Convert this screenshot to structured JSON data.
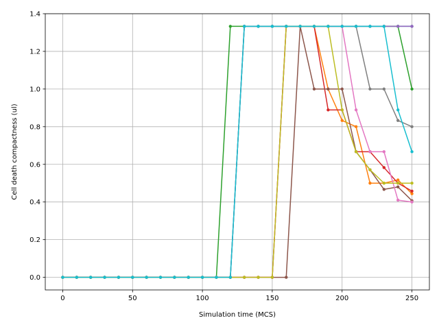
{
  "chart_data": {
    "type": "line",
    "title": "",
    "xlabel": "Simulation time (MCS)",
    "ylabel": "Cell death compactness (ul)",
    "xlim": [
      -12.5,
      262.5
    ],
    "ylim": [
      -0.067,
      1.4
    ],
    "x_ticks": [
      0,
      50,
      100,
      150,
      200,
      250
    ],
    "y_ticks": [
      0.0,
      0.2,
      0.4,
      0.6,
      0.8,
      1.0,
      1.2,
      1.4
    ],
    "x_tick_labels": [
      "0",
      "50",
      "100",
      "150",
      "200",
      "250"
    ],
    "y_tick_labels": [
      "0.0",
      "0.2",
      "0.4",
      "0.6",
      "0.8",
      "1.0",
      "1.2",
      "1.4"
    ],
    "grid": true,
    "marker": "dot",
    "x": [
      0,
      10,
      20,
      30,
      40,
      50,
      60,
      70,
      80,
      90,
      100,
      110,
      120,
      130,
      140,
      150,
      160,
      170,
      180,
      190,
      200,
      210,
      220,
      230,
      240,
      250
    ],
    "series": [
      {
        "color": "#1f77b4",
        "values": [
          0,
          0,
          0,
          0,
          0,
          0,
          0,
          0,
          0,
          0,
          0,
          0,
          0,
          1.333,
          1.333,
          1.333,
          1.333,
          1.333,
          1.333,
          1.333,
          1.333,
          1.333,
          1.333,
          1.333,
          1.333,
          1.333
        ]
      },
      {
        "color": "#ff7f0e",
        "values": [
          0,
          0,
          0,
          0,
          0,
          0,
          0,
          0,
          0,
          0,
          0,
          0,
          0,
          0,
          0,
          0,
          1.333,
          1.333,
          1.333,
          1.0,
          0.833,
          0.8,
          0.5,
          0.5,
          0.517,
          0.444
        ]
      },
      {
        "color": "#2ca02c",
        "values": [
          0,
          0,
          0,
          0,
          0,
          0,
          0,
          0,
          0,
          0,
          0,
          0,
          1.333,
          1.333,
          1.333,
          1.333,
          1.333,
          1.333,
          1.333,
          1.333,
          1.333,
          1.333,
          1.333,
          1.333,
          1.333,
          1.0
        ]
      },
      {
        "color": "#d62728",
        "values": [
          0,
          0,
          0,
          0,
          0,
          0,
          0,
          0,
          0,
          0,
          0,
          0,
          0,
          0,
          0,
          0,
          1.333,
          1.333,
          1.333,
          0.889,
          0.889,
          0.667,
          0.667,
          0.583,
          0.5,
          0.458
        ]
      },
      {
        "color": "#9467bd",
        "values": [
          0,
          0,
          0,
          0,
          0,
          0,
          0,
          0,
          0,
          0,
          0,
          0,
          0,
          1.333,
          1.333,
          1.333,
          1.333,
          1.333,
          1.333,
          1.333,
          1.333,
          1.333,
          1.333,
          1.333,
          1.333,
          1.333
        ]
      },
      {
        "color": "#8c564b",
        "values": [
          0,
          0,
          0,
          0,
          0,
          0,
          0,
          0,
          0,
          0,
          0,
          0,
          0,
          0,
          0,
          0,
          0,
          1.333,
          1.0,
          1.0,
          1.0,
          0.667,
          0.571,
          0.467,
          0.48,
          0.407
        ]
      },
      {
        "color": "#e377c2",
        "values": [
          0,
          0,
          0,
          0,
          0,
          0,
          0,
          0,
          0,
          0,
          0,
          0,
          0,
          0,
          0,
          0,
          1.333,
          1.333,
          1.333,
          1.333,
          1.333,
          0.889,
          0.667,
          0.667,
          0.41,
          0.4
        ]
      },
      {
        "color": "#7f7f7f",
        "values": [
          0,
          0,
          0,
          0,
          0,
          0,
          0,
          0,
          0,
          0,
          0,
          0,
          0,
          1.333,
          1.333,
          1.333,
          1.333,
          1.333,
          1.333,
          1.333,
          1.333,
          1.333,
          1.0,
          1.0,
          0.833,
          0.8
        ]
      },
      {
        "color": "#bcbd22",
        "values": [
          0,
          0,
          0,
          0,
          0,
          0,
          0,
          0,
          0,
          0,
          0,
          0,
          0,
          0,
          0,
          0,
          1.333,
          1.333,
          1.333,
          1.333,
          0.889,
          0.667,
          0.571,
          0.5,
          0.5,
          0.5
        ]
      },
      {
        "color": "#17becf",
        "values": [
          0,
          0,
          0,
          0,
          0,
          0,
          0,
          0,
          0,
          0,
          0,
          0,
          0,
          1.333,
          1.333,
          1.333,
          1.333,
          1.333,
          1.333,
          1.333,
          1.333,
          1.333,
          1.333,
          1.333,
          0.889,
          0.667
        ]
      }
    ]
  }
}
